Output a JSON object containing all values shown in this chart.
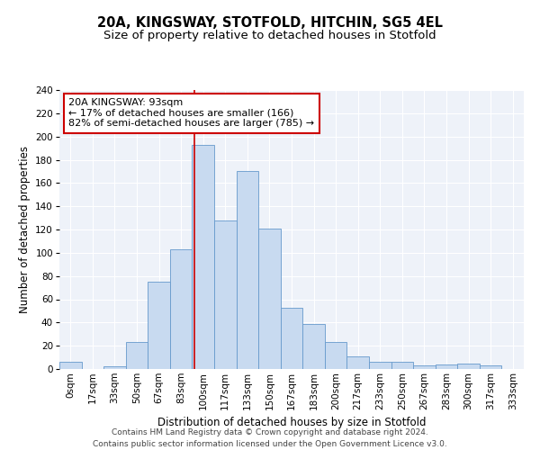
{
  "title": "20A, KINGSWAY, STOTFOLD, HITCHIN, SG5 4EL",
  "subtitle": "Size of property relative to detached houses in Stotfold",
  "xlabel": "Distribution of detached houses by size in Stotfold",
  "ylabel": "Number of detached properties",
  "bar_categories": [
    "0sqm",
    "17sqm",
    "33sqm",
    "50sqm",
    "67sqm",
    "83sqm",
    "100sqm",
    "117sqm",
    "133sqm",
    "150sqm",
    "167sqm",
    "183sqm",
    "200sqm",
    "217sqm",
    "233sqm",
    "250sqm",
    "267sqm",
    "283sqm",
    "300sqm",
    "317sqm",
    "333sqm"
  ],
  "bar_values": [
    6,
    0,
    2,
    23,
    75,
    103,
    193,
    128,
    170,
    121,
    53,
    39,
    23,
    11,
    6,
    6,
    3,
    4,
    5,
    3,
    0
  ],
  "bar_color": "#c8daf0",
  "bar_edge_color": "#6699cc",
  "vline_color": "#cc0000",
  "annotation_text": "20A KINGSWAY: 93sqm\n← 17% of detached houses are smaller (166)\n82% of semi-detached houses are larger (785) →",
  "annotation_box_color": "white",
  "annotation_box_edge": "#cc0000",
  "ylim": [
    0,
    240
  ],
  "yticks": [
    0,
    20,
    40,
    60,
    80,
    100,
    120,
    140,
    160,
    180,
    200,
    220,
    240
  ],
  "bg_color": "#eef2f9",
  "footer_line1": "Contains HM Land Registry data © Crown copyright and database right 2024.",
  "footer_line2": "Contains public sector information licensed under the Open Government Licence v3.0.",
  "title_fontsize": 10.5,
  "subtitle_fontsize": 9.5,
  "axis_label_fontsize": 8.5,
  "tick_fontsize": 7.5,
  "annotation_fontsize": 8,
  "footer_fontsize": 6.5,
  "grid_color": "#ffffff"
}
